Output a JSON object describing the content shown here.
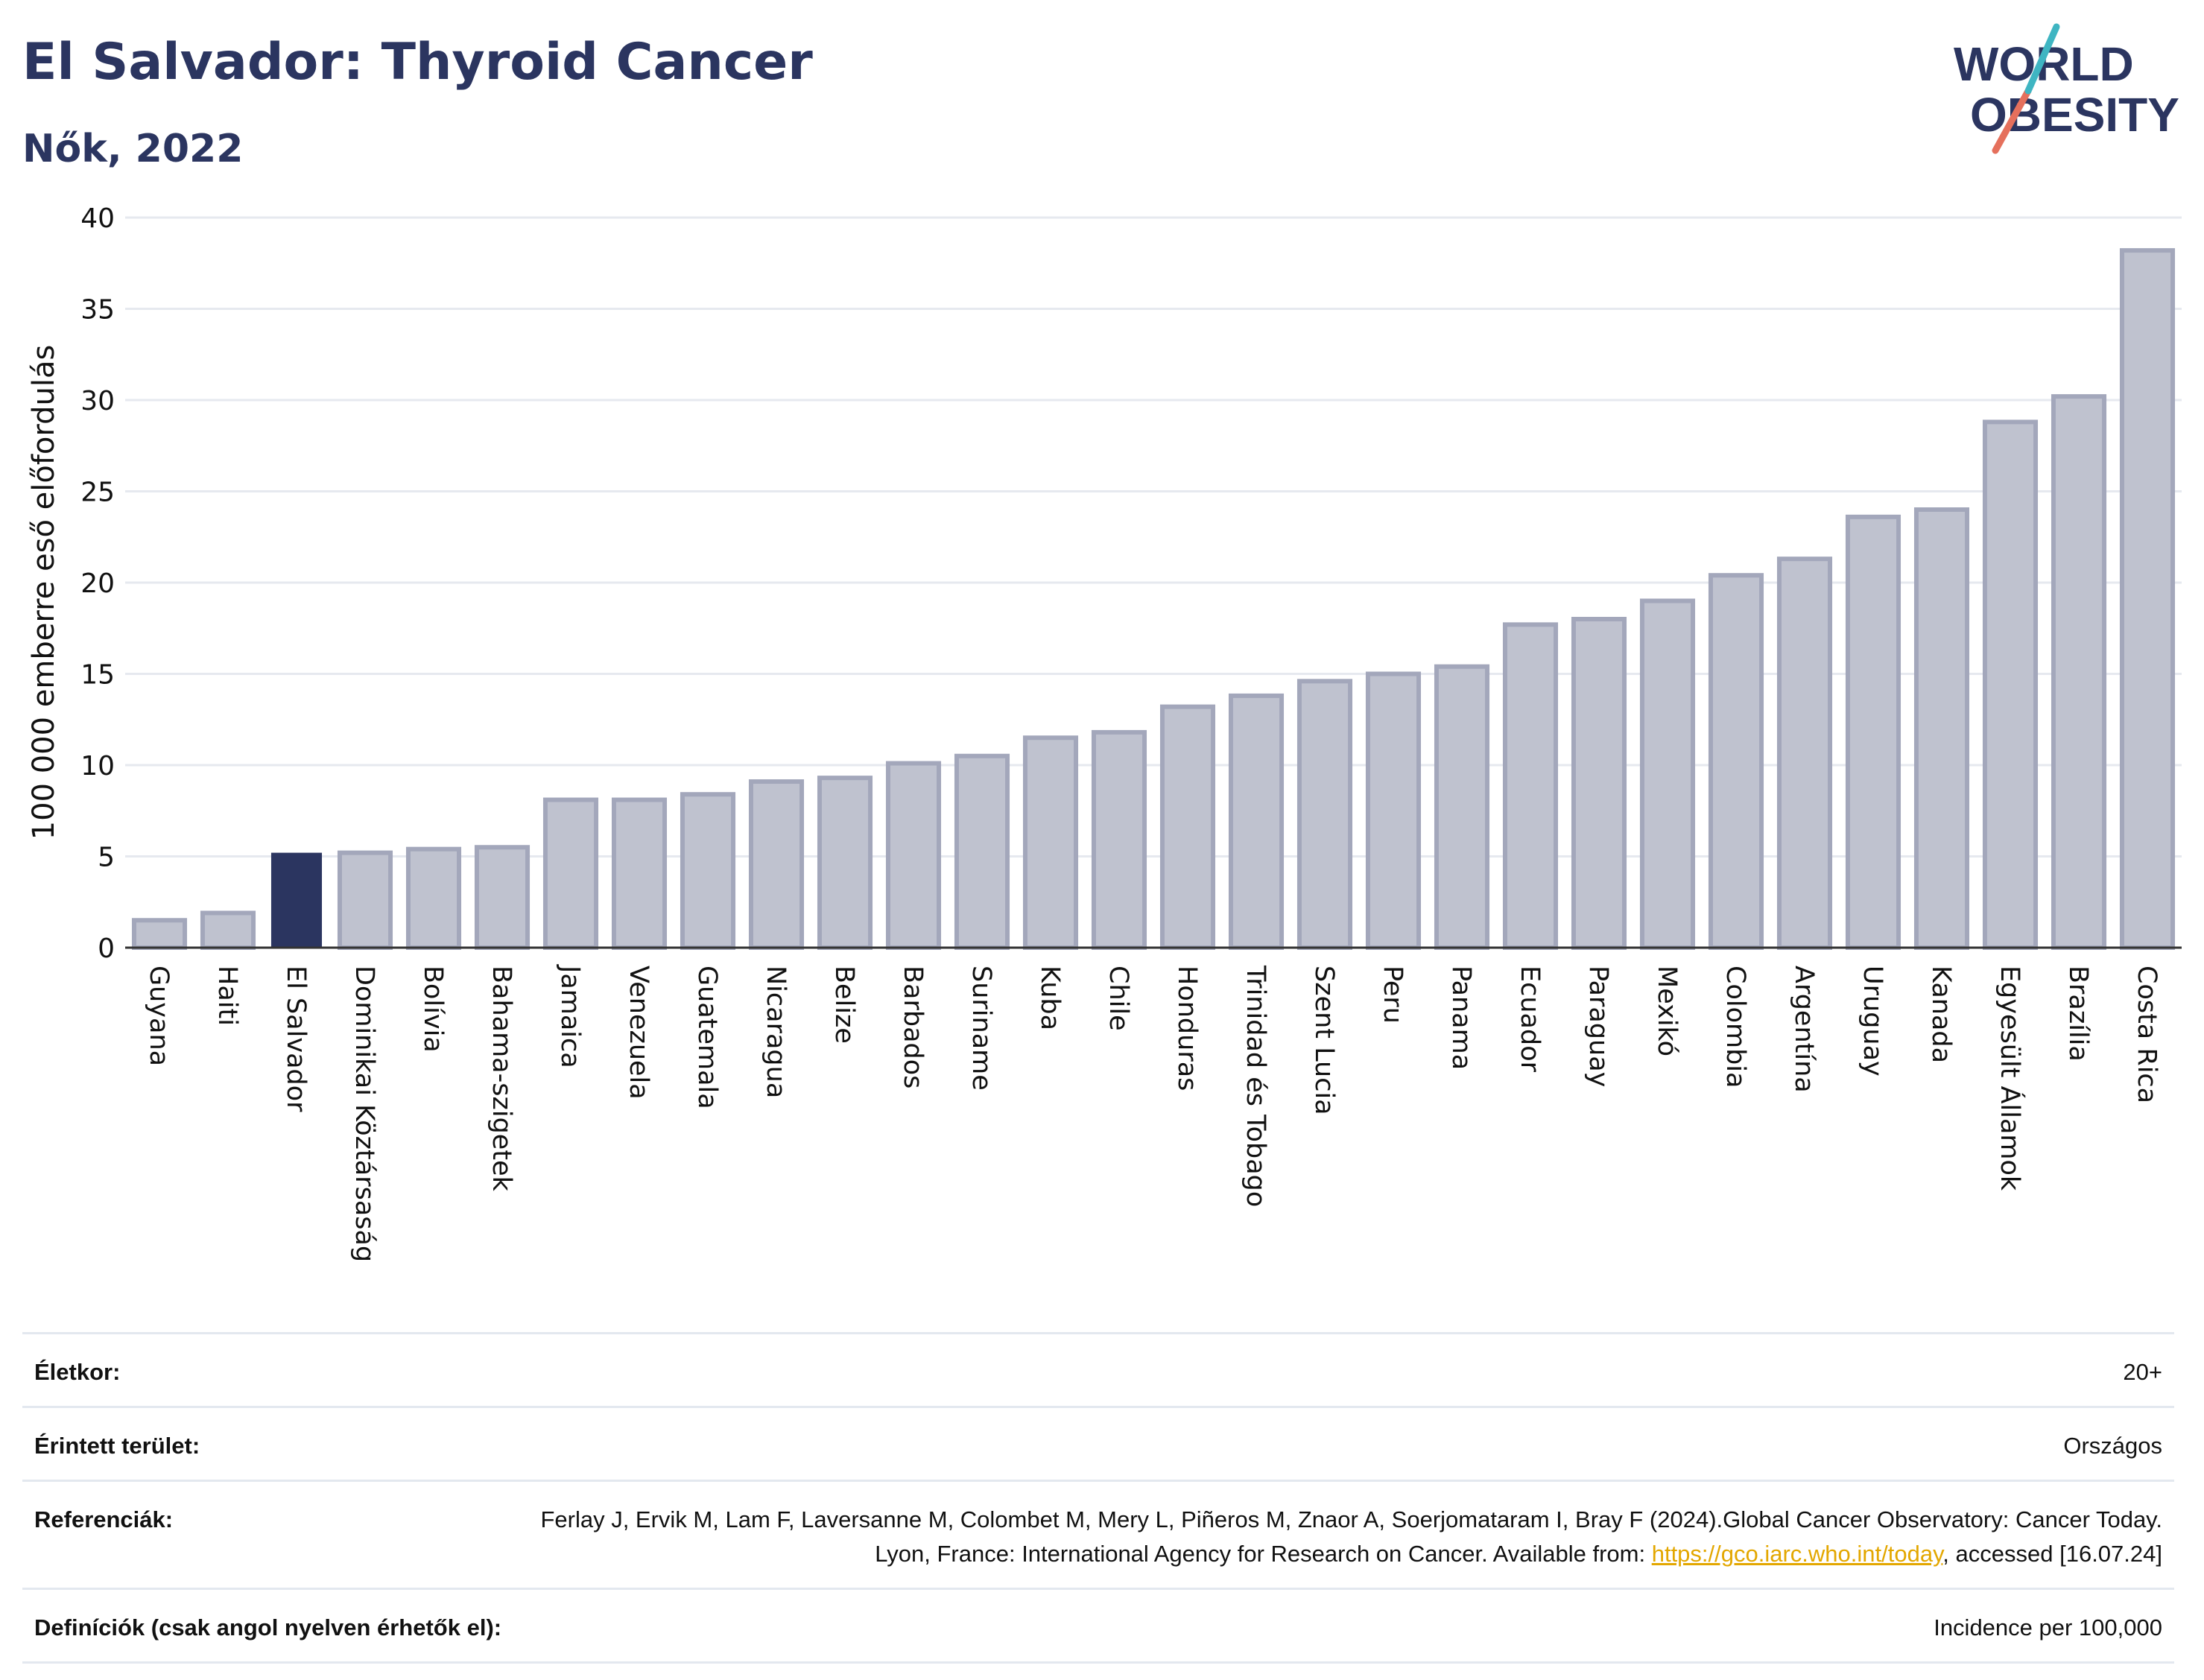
{
  "header": {
    "title": "El Salvador: Thyroid Cancer",
    "subtitle": "Nők, 2022"
  },
  "logo": {
    "line1": "WORLD",
    "line2": "OBESITY",
    "accent_teal": "#3fb5c2",
    "accent_coral": "#e5705c",
    "text_color": "#2b3560"
  },
  "colors": {
    "highlight_bar": "#2b3560",
    "other_bar_fill": "#bfc2cf",
    "other_bar_stroke": "#a3a7bb",
    "grid": "#e6e9ef",
    "axis": "#333333"
  },
  "chart_data": {
    "type": "bar",
    "title": "El Salvador: Thyroid Cancer",
    "subtitle": "Nők, 2022",
    "xlabel": "",
    "ylabel": "100 000 emberre eső előfordulás",
    "ylim": [
      0,
      40
    ],
    "yticks": [
      0,
      5,
      10,
      15,
      20,
      25,
      30,
      35,
      40
    ],
    "grid": true,
    "highlight": "El Salvador",
    "categories": [
      "Guyana",
      "Haiti",
      "El Salvador",
      "Dominikai Köztársaság",
      "Bolívia",
      "Bahama-szigetek",
      "Jamaica",
      "Venezuela",
      "Guatemala",
      "Nicaragua",
      "Belize",
      "Barbados",
      "Suriname",
      "Kuba",
      "Chile",
      "Honduras",
      "Trinidad és Tobago",
      "Szent Lucia",
      "Peru",
      "Panama",
      "Ecuador",
      "Paraguay",
      "Mexikó",
      "Colombia",
      "Argentína",
      "Uruguay",
      "Kanada",
      "Egyesült Államok",
      "Brazília",
      "Costa Rica"
    ],
    "values": [
      1.5,
      1.9,
      5.2,
      5.2,
      5.4,
      5.5,
      8.1,
      8.1,
      8.4,
      9.1,
      9.3,
      10.1,
      10.5,
      11.5,
      11.8,
      13.2,
      13.8,
      14.6,
      15.0,
      15.4,
      17.7,
      18.0,
      19.0,
      20.4,
      21.3,
      23.6,
      24.0,
      28.8,
      30.2,
      38.2
    ]
  },
  "meta": {
    "age_label": "Életkor:",
    "age_value": "20+",
    "area_label": "Érintett terület:",
    "area_value": "Országos",
    "refs_label": "Referenciák:",
    "refs_text_1": "Ferlay J, Ervik M, Lam F, Laversanne M, Colombet M, Mery L, Piñeros M, Znaor A, Soerjomataram I, Bray F (2024).Global Cancer Observatory: Cancer Today. Lyon, France: International Agency for Research on Cancer. Available from: ",
    "refs_link": "https://gco.iarc.who.int/today",
    "refs_text_2": ", accessed [16.07.24]",
    "defs_label": "Definíciók (csak angol nyelven érhetők el):",
    "defs_value": "Incidence per 100,000"
  }
}
